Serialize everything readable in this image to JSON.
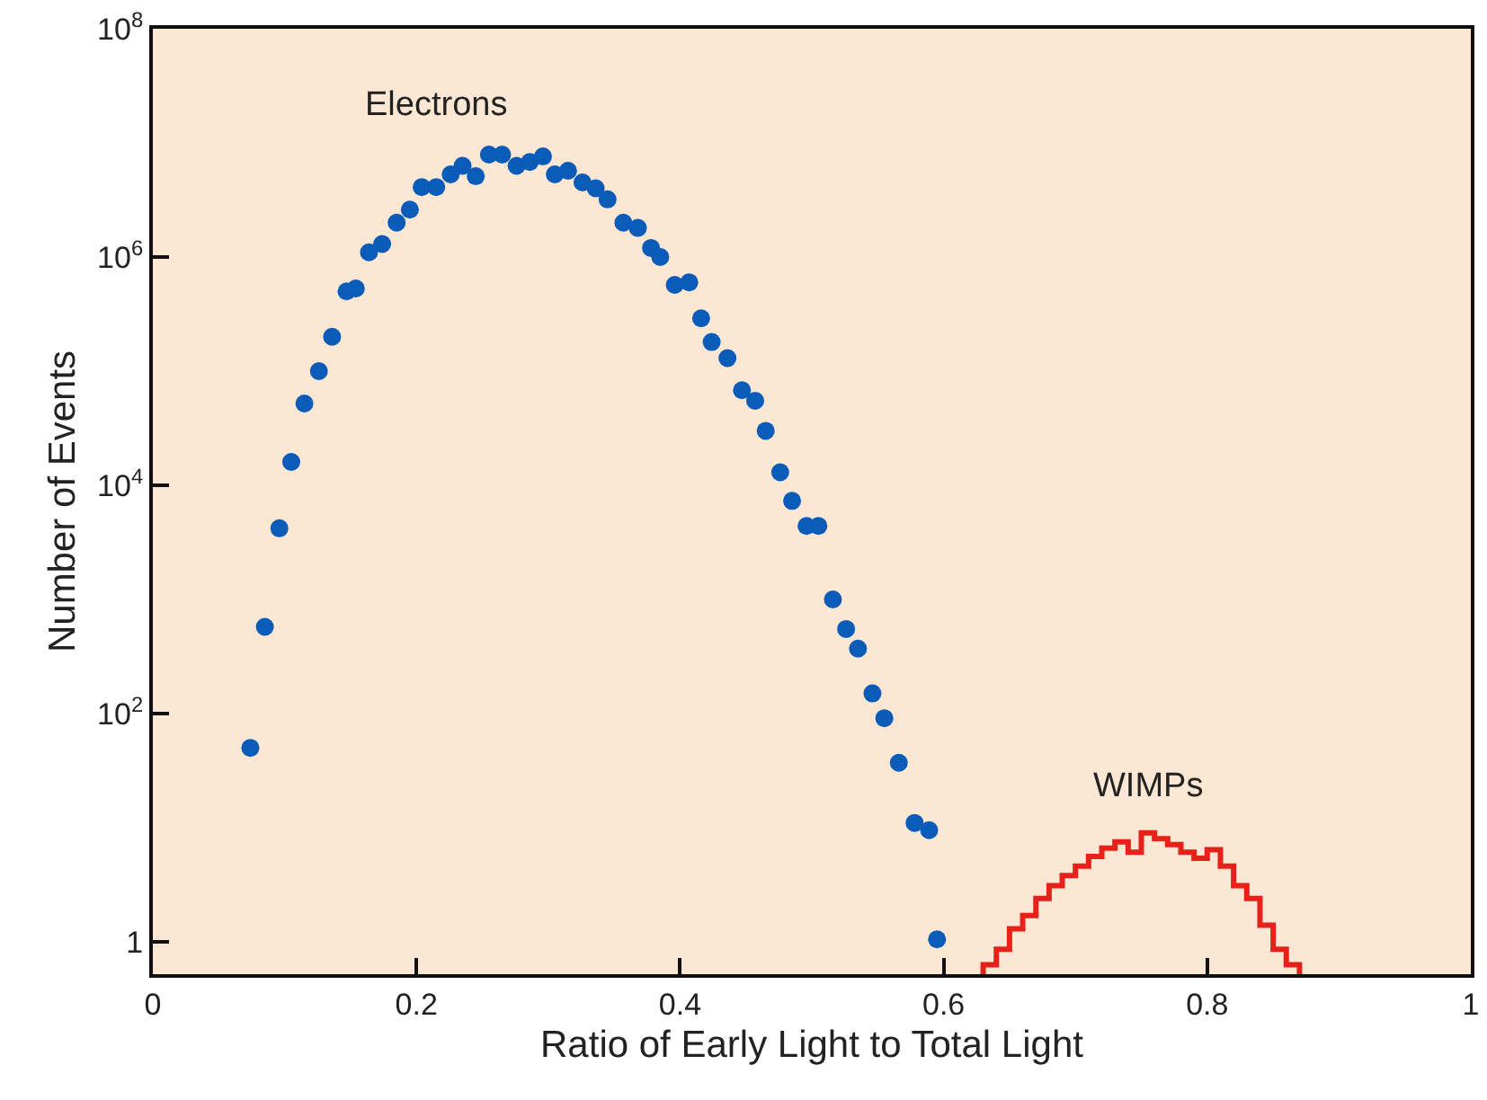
{
  "chart_data": {
    "type": "scatter",
    "xlabel": "Ratio of Early Light to Total Light",
    "ylabel": "Number of Events",
    "log": "y",
    "grid": false,
    "legend": false,
    "marker": "circle",
    "xlim": [
      0,
      1
    ],
    "xticks": [
      0,
      0.2,
      0.4,
      0.6,
      0.8,
      1
    ],
    "ylim": [
      0.52,
      100000000
    ],
    "yticks": [
      {
        "value": 1,
        "label": "1"
      },
      {
        "value": 100,
        "label": "10$^{2}$"
      },
      {
        "value": 10000,
        "label": "10$^{4}$"
      },
      {
        "value": 1000000,
        "label": "10$^{6}$"
      },
      {
        "value": 100000000,
        "label": "10$^{8}$"
      }
    ],
    "series": [
      {
        "name": "Electrons",
        "color": "#0a5cb8",
        "x": [
          0.074,
          0.085,
          0.096,
          0.105,
          0.115,
          0.126,
          0.136,
          0.147,
          0.154,
          0.164,
          0.174,
          0.185,
          0.195,
          0.204,
          0.215,
          0.226,
          0.235,
          0.245,
          0.255,
          0.265,
          0.276,
          0.286,
          0.296,
          0.305,
          0.315,
          0.326,
          0.336,
          0.345,
          0.357,
          0.368,
          0.378,
          0.385,
          0.396,
          0.407,
          0.416,
          0.424,
          0.436,
          0.447,
          0.457,
          0.465,
          0.476,
          0.485,
          0.496,
          0.505,
          0.516,
          0.526,
          0.535,
          0.546,
          0.555,
          0.566,
          0.578,
          0.589,
          0.595
        ],
        "values": [
          50,
          575,
          4200,
          16000,
          52000,
          100000,
          200000,
          500000,
          530000,
          1100000,
          1300000,
          2000000,
          2600000,
          4100000,
          4100000,
          5300000,
          6300000,
          5100000,
          7900000,
          7900000,
          6300000,
          6800000,
          7600000,
          5300000,
          5700000,
          4500000,
          4000000,
          3200000,
          2000000,
          1800000,
          1200000,
          1000000,
          570000,
          600000,
          290000,
          180000,
          130000,
          68000,
          55000,
          30000,
          13000,
          7300,
          4400,
          4400,
          1000,
          550,
          370,
          150,
          91,
          37,
          11,
          9.5,
          1.05
        ]
      },
      {
        "name": "WIMPs",
        "type": "histogram",
        "color": "#e8201a",
        "bins": [
          0.63,
          0.64,
          0.65,
          0.66,
          0.67,
          0.68,
          0.69,
          0.7,
          0.71,
          0.72,
          0.73,
          0.74,
          0.75,
          0.76,
          0.77,
          0.78,
          0.79,
          0.8,
          0.81,
          0.82,
          0.83,
          0.84,
          0.85,
          0.86,
          0.87
        ],
        "values": [
          0.63,
          0.86,
          1.3,
          1.7,
          2.4,
          3.1,
          3.8,
          4.6,
          5.6,
          6.6,
          7.5,
          6.1,
          9.0,
          8.0,
          7.1,
          6.1,
          5.4,
          6.4,
          4.6,
          3.1,
          2.4,
          1.4,
          0.86,
          0.63
        ]
      }
    ]
  }
}
